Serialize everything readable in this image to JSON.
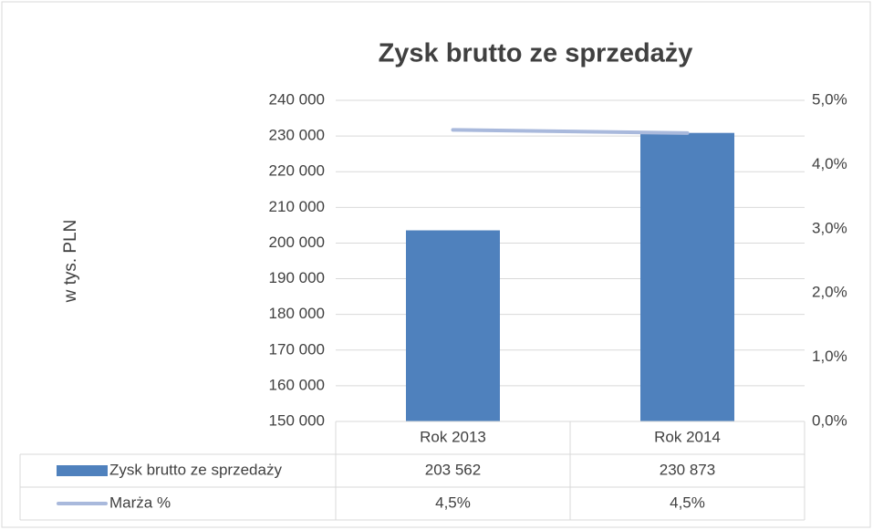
{
  "chart_data": {
    "type": "bar",
    "title": "Zysk brutto ze sprzedaży",
    "y_label": "w tys. PLN",
    "categories": [
      "Rok 2013",
      "Rok 2014"
    ],
    "series": [
      {
        "name": "Zysk brutto ze sprzedaży",
        "type": "bar",
        "color": "#4f81bd",
        "values": [
          203562,
          230873
        ],
        "value_labels": [
          "203 562",
          "230 873"
        ]
      },
      {
        "name": "Marża %",
        "type": "line",
        "axis": "y2",
        "color": "#a9b9dc",
        "values": [
          4.54,
          4.49
        ],
        "value_labels": [
          "4,5%",
          "4,5%"
        ]
      }
    ],
    "ylim": [
      150000,
      240000
    ],
    "yticks": [
      {
        "value": 150000,
        "label": "150 000"
      },
      {
        "value": 160000,
        "label": "160 000"
      },
      {
        "value": 170000,
        "label": "170 000"
      },
      {
        "value": 180000,
        "label": "180 000"
      },
      {
        "value": 190000,
        "label": "190 000"
      },
      {
        "value": 200000,
        "label": "200 000"
      },
      {
        "value": 210000,
        "label": "210 000"
      },
      {
        "value": 220000,
        "label": "220 000"
      },
      {
        "value": 230000,
        "label": "230 000"
      },
      {
        "value": 240000,
        "label": "240 000"
      }
    ],
    "y2lim": [
      0,
      5
    ],
    "y2ticks": [
      {
        "value": 0,
        "label": "0,0%"
      },
      {
        "value": 1,
        "label": "1,0%"
      },
      {
        "value": 2,
        "label": "2,0%"
      },
      {
        "value": 3,
        "label": "3,0%"
      },
      {
        "value": 4,
        "label": "4,0%"
      },
      {
        "value": 5,
        "label": "5,0%"
      }
    ],
    "grid": true,
    "data_table": true
  }
}
